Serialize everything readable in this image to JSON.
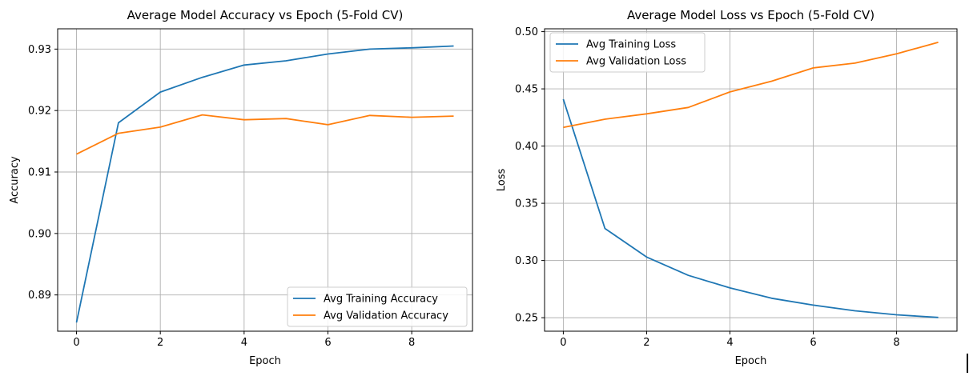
{
  "chart_data": [
    {
      "type": "line",
      "title": "Average Model Accuracy vs Epoch (5-Fold CV)",
      "xlabel": "Epoch",
      "ylabel": "Accuracy",
      "xlim": [
        -0.45,
        9.45
      ],
      "ylim": [
        0.8841,
        0.9333
      ],
      "xticks": [
        0,
        2,
        4,
        6,
        8
      ],
      "xtick_labels": [
        "0",
        "2",
        "4",
        "6",
        "8"
      ],
      "yticks": [
        0.89,
        0.9,
        0.91,
        0.92,
        0.93
      ],
      "ytick_labels": [
        "0.89",
        "0.90",
        "0.91",
        "0.92",
        "0.93"
      ],
      "grid": true,
      "legend_position": "bottom-right",
      "x": [
        0,
        1,
        2,
        3,
        4,
        5,
        6,
        7,
        8,
        9
      ],
      "series": [
        {
          "name": "Avg Training Accuracy",
          "color": "#1f77b4",
          "values": [
            0.8855,
            0.918,
            0.923,
            0.9254,
            0.9274,
            0.9281,
            0.9292,
            0.93,
            0.9302,
            0.9305
          ]
        },
        {
          "name": "Avg Validation Accuracy",
          "color": "#ff7f0e",
          "values": [
            0.9129,
            0.9163,
            0.9173,
            0.9193,
            0.9185,
            0.9187,
            0.9177,
            0.9192,
            0.9189,
            0.9191
          ]
        }
      ]
    },
    {
      "type": "line",
      "title": "Average Model Loss vs Epoch (5-Fold CV)",
      "xlabel": "Epoch",
      "ylabel": "Loss",
      "xlim": [
        -0.45,
        9.45
      ],
      "ylim": [
        0.2382,
        0.5025
      ],
      "xticks": [
        0,
        2,
        4,
        6,
        8
      ],
      "xtick_labels": [
        "0",
        "2",
        "4",
        "6",
        "8"
      ],
      "yticks": [
        0.25,
        0.3,
        0.35,
        0.4,
        0.45,
        0.5
      ],
      "ytick_labels": [
        "0.25",
        "0.30",
        "0.35",
        "0.40",
        "0.45",
        "0.50"
      ],
      "grid": true,
      "legend_position": "top-left",
      "x": [
        0,
        1,
        2,
        3,
        4,
        5,
        6,
        7,
        8,
        9
      ],
      "series": [
        {
          "name": "Avg Training Loss",
          "color": "#1f77b4",
          "values": [
            0.441,
            0.328,
            0.303,
            0.287,
            0.276,
            0.267,
            0.261,
            0.256,
            0.2525,
            0.2502
          ]
        },
        {
          "name": "Avg Validation Loss",
          "color": "#ff7f0e",
          "values": [
            0.4163,
            0.4235,
            0.4282,
            0.4338,
            0.4473,
            0.4567,
            0.4683,
            0.4725,
            0.4807,
            0.4907
          ]
        }
      ]
    }
  ]
}
